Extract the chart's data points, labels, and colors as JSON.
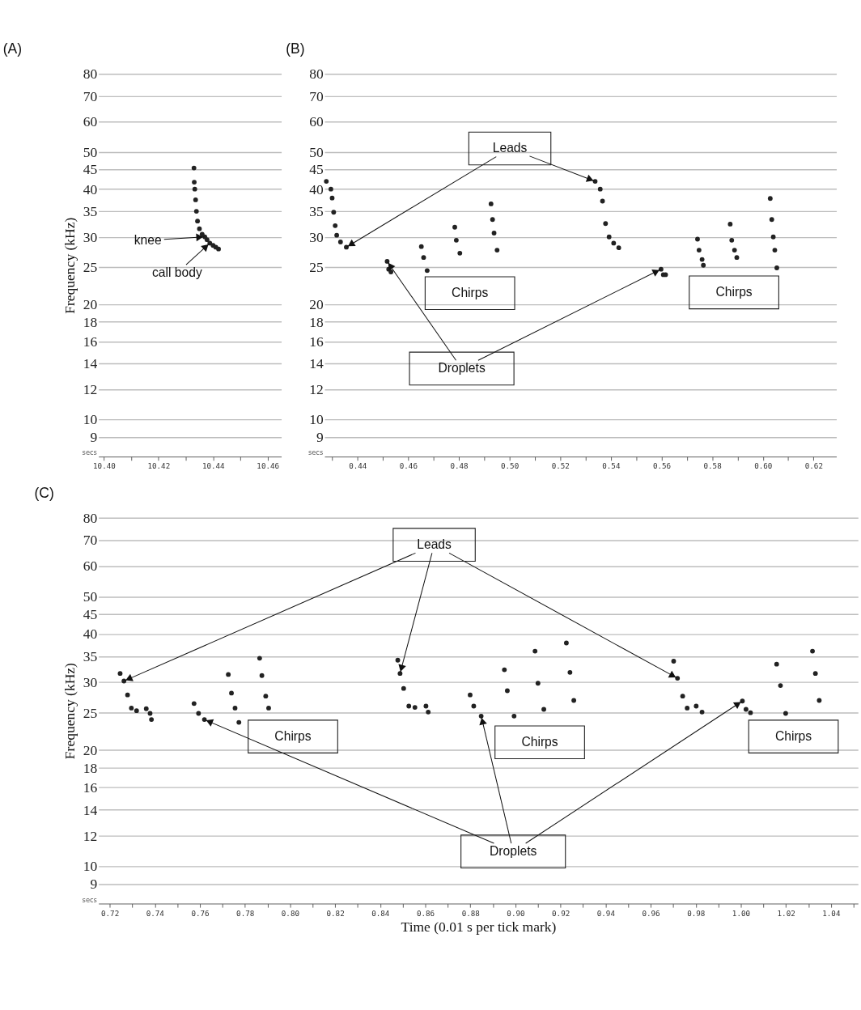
{
  "chart_data": [
    {
      "type": "scatter",
      "title": "(A)",
      "ylabel": "Frequency (kHz)",
      "log": "y",
      "grid": "y",
      "marker": "circle",
      "xlim": [
        10.398,
        10.465
      ],
      "ylim": [
        8,
        80
      ],
      "xticks": [
        {
          "value": 10.4,
          "label": "10.40"
        },
        {
          "value": 10.41,
          "label": null
        },
        {
          "value": 10.42,
          "label": "10.42"
        },
        {
          "value": 10.43,
          "label": null
        },
        {
          "value": 10.44,
          "label": "10.44"
        },
        {
          "value": 10.45,
          "label": null
        },
        {
          "value": 10.46,
          "label": "10.46"
        }
      ],
      "yticks": [
        9,
        10,
        12,
        14,
        16,
        18,
        20,
        25,
        30,
        35,
        40,
        45,
        50,
        60,
        70,
        80
      ],
      "series": [
        {
          "color": "#222222",
          "x": [
            10.433,
            10.4331,
            10.4333,
            10.4336,
            10.4339,
            10.4343,
            10.435,
            10.436,
            10.437,
            10.4378,
            10.4388,
            10.44,
            10.441,
            10.442
          ],
          "values": [
            45.4,
            41.7,
            40.0,
            37.5,
            35.0,
            33.0,
            31.5,
            30.5,
            30.0,
            29.5,
            28.9,
            28.5,
            28.2,
            27.9
          ]
        }
      ],
      "annotations": [
        {
          "text": "knee",
          "x": 10.437,
          "y": 30.0
        },
        {
          "text": "call body",
          "x": 10.4388,
          "y": 28.9
        },
        "secs"
      ]
    },
    {
      "type": "scatter",
      "title": "(B)",
      "log": "y",
      "grid": "y",
      "marker": "circle",
      "xlim": [
        0.427,
        0.629
      ],
      "ylim": [
        8,
        80
      ],
      "xticks": [
        {
          "value": 0.43,
          "label": null
        },
        {
          "value": 0.44,
          "label": "0.44"
        },
        {
          "value": 0.45,
          "label": null
        },
        {
          "value": 0.46,
          "label": "0.46"
        },
        {
          "value": 0.47,
          "label": null
        },
        {
          "value": 0.48,
          "label": "0.48"
        },
        {
          "value": 0.49,
          "label": null
        },
        {
          "value": 0.5,
          "label": "0.50"
        },
        {
          "value": 0.51,
          "label": null
        },
        {
          "value": 0.52,
          "label": "0.52"
        },
        {
          "value": 0.53,
          "label": null
        },
        {
          "value": 0.54,
          "label": "0.54"
        },
        {
          "value": 0.55,
          "label": null
        },
        {
          "value": 0.56,
          "label": "0.56"
        },
        {
          "value": 0.57,
          "label": null
        },
        {
          "value": 0.58,
          "label": "0.58"
        },
        {
          "value": 0.59,
          "label": null
        },
        {
          "value": 0.6,
          "label": "0.60"
        },
        {
          "value": 0.61,
          "label": null
        },
        {
          "value": 0.62,
          "label": "0.62"
        }
      ],
      "yticks": [
        9,
        10,
        12,
        14,
        16,
        18,
        20,
        25,
        30,
        35,
        40,
        45,
        50,
        60,
        70,
        80
      ],
      "series": [
        {
          "color": "#222222",
          "x": [
            0.4277,
            0.4295,
            0.43,
            0.4306,
            0.4312,
            0.4318,
            0.4333,
            0.4356
          ],
          "values": [
            41.9,
            40.0,
            37.9,
            34.8,
            32.1,
            30.3,
            29.1,
            28.2
          ]
        },
        {
          "color": "#222222",
          "x": [
            0.4517,
            0.4523,
            0.4532
          ],
          "values": [
            25.9,
            24.7,
            24.3
          ]
        },
        {
          "color": "#222222",
          "x": [
            0.4652,
            0.4661,
            0.4675
          ],
          "values": [
            28.3,
            26.5,
            24.5
          ]
        },
        {
          "color": "#222222",
          "x": [
            0.4784,
            0.479,
            0.4804
          ],
          "values": [
            31.8,
            29.4,
            27.2
          ]
        },
        {
          "color": "#222222",
          "x": [
            0.4927,
            0.4933,
            0.4939,
            0.4951
          ],
          "values": [
            36.6,
            33.3,
            30.7,
            27.7
          ]
        },
        {
          "color": "#222222",
          "x": [
            0.5338,
            0.5358,
            0.5367,
            0.5379,
            0.5393,
            0.5411,
            0.5431
          ],
          "values": [
            41.9,
            40.0,
            37.2,
            32.5,
            30.0,
            28.9,
            28.1
          ]
        },
        {
          "color": "#222222",
          "x": [
            0.5598,
            0.5607,
            0.5616
          ],
          "values": [
            24.7,
            23.9,
            23.9
          ]
        },
        {
          "color": "#222222",
          "x": [
            0.5742,
            0.5748,
            0.576,
            0.5765
          ],
          "values": [
            29.6,
            27.7,
            26.2,
            25.3
          ]
        },
        {
          "color": "#222222",
          "x": [
            0.5871,
            0.5877,
            0.5888,
            0.5897
          ],
          "values": [
            32.4,
            29.4,
            27.7,
            26.5
          ]
        },
        {
          "color": "#222222",
          "x": [
            0.6029,
            0.6035,
            0.6041,
            0.6047,
            0.6055
          ],
          "values": [
            37.8,
            33.3,
            30.0,
            27.7,
            24.9
          ]
        }
      ],
      "annotations": [
        {
          "text": "Leads",
          "x": 0.4356,
          "y": 28.2
        },
        "Chirps",
        "Chirps",
        {
          "text": "Droplets",
          "x": 0.4517,
          "y": 25.9
        },
        "secs"
      ]
    },
    {
      "type": "scatter",
      "title": "(C)",
      "xlabel": "Time (0.01 s per tick mark)",
      "ylabel": "Frequency (kHz)",
      "log": "y",
      "grid": "y",
      "marker": "circle",
      "xlim": [
        0.715,
        1.052
      ],
      "ylim": [
        8,
        80
      ],
      "xticks": [
        {
          "value": 0.72,
          "label": "0.72"
        },
        {
          "value": 0.73,
          "label": null
        },
        {
          "value": 0.74,
          "label": "0.74"
        },
        {
          "value": 0.75,
          "label": null
        },
        {
          "value": 0.76,
          "label": "0.76"
        },
        {
          "value": 0.77,
          "label": null
        },
        {
          "value": 0.78,
          "label": "0.78"
        },
        {
          "value": 0.79,
          "label": null
        },
        {
          "value": 0.8,
          "label": "0.80"
        },
        {
          "value": 0.81,
          "label": null
        },
        {
          "value": 0.82,
          "label": "0.82"
        },
        {
          "value": 0.83,
          "label": null
        },
        {
          "value": 0.84,
          "label": "0.84"
        },
        {
          "value": 0.85,
          "label": null
        },
        {
          "value": 0.86,
          "label": "0.86"
        },
        {
          "value": 0.87,
          "label": null
        },
        {
          "value": 0.88,
          "label": "0.88"
        },
        {
          "value": 0.89,
          "label": null
        },
        {
          "value": 0.9,
          "label": "0.90"
        },
        {
          "value": 0.91,
          "label": null
        },
        {
          "value": 0.92,
          "label": "0.92"
        },
        {
          "value": 0.93,
          "label": null
        },
        {
          "value": 0.94,
          "label": "0.94"
        },
        {
          "value": 0.95,
          "label": null
        },
        {
          "value": 0.96,
          "label": "0.96"
        },
        {
          "value": 0.97,
          "label": null
        },
        {
          "value": 0.98,
          "label": "0.98"
        },
        {
          "value": 0.99,
          "label": null
        },
        {
          "value": 1.0,
          "label": "1.00"
        },
        {
          "value": 1.01,
          "label": null
        },
        {
          "value": 1.02,
          "label": "1.02"
        },
        {
          "value": 1.03,
          "label": null
        },
        {
          "value": 1.04,
          "label": "1.04"
        },
        {
          "value": 1.05,
          "label": null
        }
      ],
      "yticks": [
        9,
        10,
        12,
        14,
        16,
        18,
        20,
        25,
        30,
        35,
        40,
        45,
        50,
        60,
        70,
        80
      ],
      "series": [
        {
          "color": "#222222",
          "x": [
            0.7246,
            0.7263,
            0.7279,
            0.7296,
            0.7319,
            0.7362,
            0.7379,
            0.7385
          ],
          "values": [
            31.6,
            30.2,
            27.8,
            25.7,
            25.3,
            25.6,
            24.9,
            24.0
          ]
        },
        {
          "color": "#222222",
          "x": [
            0.7574,
            0.7594,
            0.762
          ],
          "values": [
            26.4,
            24.9,
            24.0
          ]
        },
        {
          "color": "#222222",
          "x": [
            0.7726,
            0.774,
            0.7756,
            0.7773
          ],
          "values": [
            31.4,
            28.1,
            25.7,
            23.6
          ]
        },
        {
          "color": "#222222",
          "x": [
            0.7865,
            0.7875,
            0.7892,
            0.7905
          ],
          "values": [
            34.6,
            31.2,
            27.6,
            25.7
          ]
        },
        {
          "color": "#222222",
          "x": [
            0.8478,
            0.8488,
            0.8504,
            0.8527,
            0.8554,
            0.8603,
            0.8613
          ],
          "values": [
            34.2,
            31.6,
            28.9,
            26.0,
            25.8,
            26.0,
            25.1
          ]
        },
        {
          "color": "#222222",
          "x": [
            0.8799,
            0.8815,
            0.8848
          ],
          "values": [
            27.8,
            26.0,
            24.5
          ]
        },
        {
          "color": "#222222",
          "x": [
            0.8951,
            0.8964,
            0.8994
          ],
          "values": [
            32.3,
            28.5,
            24.5
          ]
        },
        {
          "color": "#222222",
          "x": [
            0.9087,
            0.91,
            0.9126
          ],
          "values": [
            36.1,
            29.8,
            25.5
          ]
        },
        {
          "color": "#222222",
          "x": [
            0.9226,
            0.9242,
            0.9259
          ],
          "values": [
            37.9,
            31.8,
            26.9
          ]
        },
        {
          "color": "#222222",
          "x": [
            0.9702,
            0.9719,
            0.9742,
            0.9762,
            0.9802,
            0.9828
          ],
          "values": [
            34.0,
            30.7,
            27.6,
            25.7,
            26.0,
            25.1
          ]
        },
        {
          "color": "#222222",
          "x": [
            1.0007,
            1.0023,
            1.0043
          ],
          "values": [
            26.8,
            25.5,
            25.0
          ]
        },
        {
          "color": "#222222",
          "x": [
            1.0159,
            1.0176,
            1.0199
          ],
          "values": [
            33.4,
            29.4,
            24.9
          ]
        },
        {
          "color": "#222222",
          "x": [
            1.0318,
            1.0331,
            1.0348
          ],
          "values": [
            36.1,
            31.6,
            26.9
          ]
        }
      ],
      "annotations": [
        {
          "text": "Leads",
          "x": 0.7263,
          "y": 30.2
        },
        "Chirps",
        "Chirps",
        "Chirps",
        {
          "text": "Droplets",
          "x": 0.762,
          "y": 24.0
        },
        "secs"
      ]
    }
  ]
}
